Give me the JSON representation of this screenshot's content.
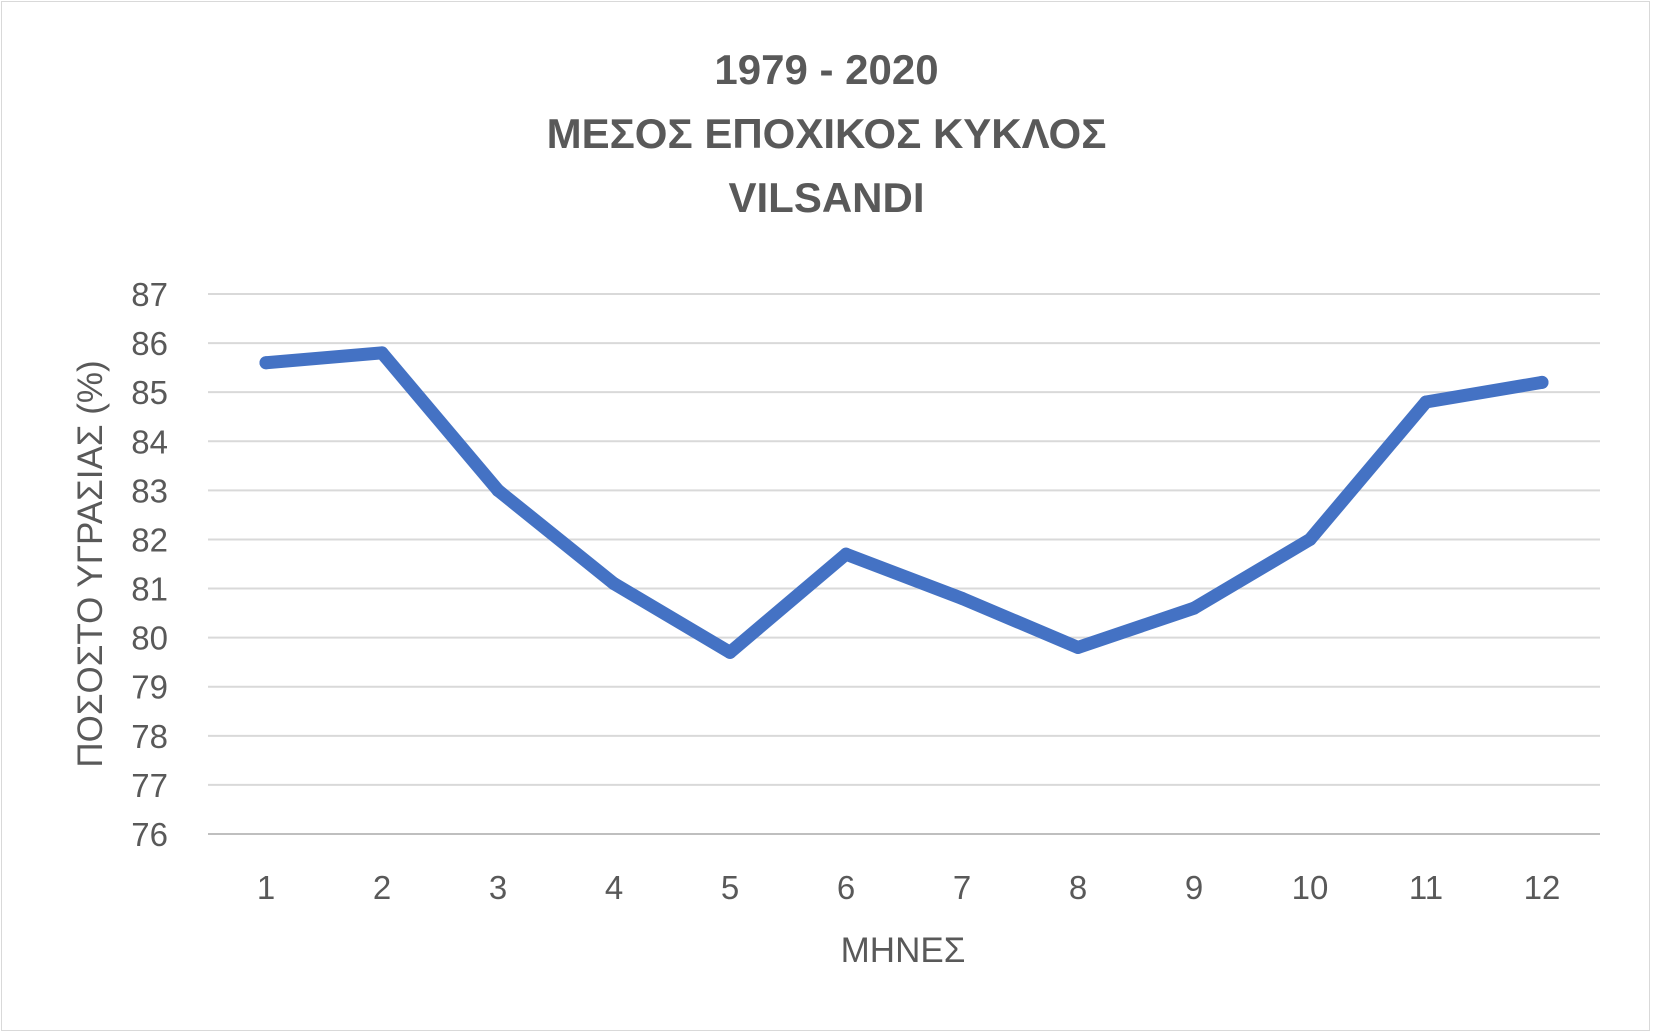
{
  "chart_data": {
    "type": "line",
    "title_lines": [
      "1979 - 2020",
      "ΜΕΣΟΣ ΕΠΟΧΙΚΟΣ ΚΥΚΛΟΣ",
      "VILSANDI"
    ],
    "xlabel": "ΜΗΝΕΣ",
    "ylabel": "ΠΟΣΟΣΤΟ ΥΓΡΑΣΙΑΣ (%)",
    "categories": [
      "1",
      "2",
      "3",
      "4",
      "5",
      "6",
      "7",
      "8",
      "9",
      "10",
      "11",
      "12"
    ],
    "y_ticks": [
      "87",
      "86",
      "85",
      "84",
      "83",
      "82",
      "81",
      "80",
      "79",
      "78",
      "77",
      "76"
    ],
    "ylim": [
      76,
      87
    ],
    "grid": true,
    "legend": "none",
    "series": [
      {
        "values": [
          85.6,
          85.8,
          83.0,
          81.1,
          79.7,
          81.7,
          80.8,
          79.8,
          80.6,
          82.0,
          84.8,
          85.2
        ],
        "color": "#4472C4"
      }
    ]
  }
}
